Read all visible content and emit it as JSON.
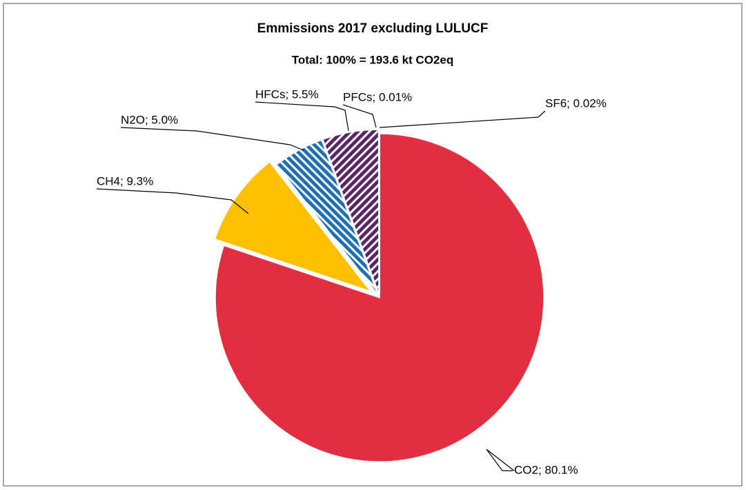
{
  "chart_data": {
    "type": "pie",
    "title": "Emmissions 2017 excluding LULUCF",
    "subtitle": "Total: 100% =  193.6   kt CO2eq",
    "categories": [
      "CO2",
      "CH4",
      "N2O",
      "HFCs",
      "PFCs",
      "SF6"
    ],
    "values": [
      80.1,
      9.3,
      5.0,
      5.5,
      0.01,
      0.02
    ],
    "value_labels": [
      "CO2; 80.1%",
      "CH4; 9.3%",
      "N2O; 5.0%",
      "HFCs; 5.5%",
      "PFCs; 0.01%",
      "SF6; 0.02%"
    ],
    "colors": [
      "#e32d40",
      "#ffc000",
      "#1f6fb4",
      "#5a2465",
      "#7a3a8a",
      "#3a3a7a"
    ],
    "hatched": [
      false,
      false,
      true,
      true,
      true,
      true
    ]
  }
}
